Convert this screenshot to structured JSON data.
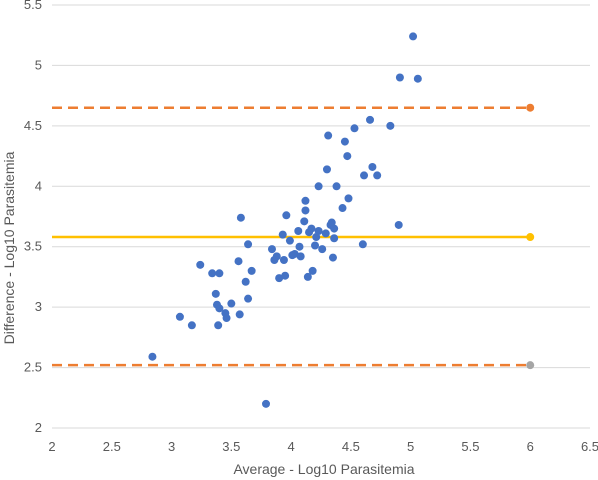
{
  "chart_data": {
    "type": "scatter",
    "title": "",
    "xlabel": "Average - Log10 Parasitemia",
    "ylabel": "Difference - Log10 Parasitemia",
    "xlim": [
      2,
      6.5
    ],
    "ylim": [
      2,
      5.5
    ],
    "x_ticks": [
      2,
      2.5,
      3,
      3.5,
      4,
      4.5,
      5,
      5.5,
      6,
      6.5
    ],
    "y_ticks": [
      2,
      2.5,
      3,
      3.5,
      4,
      4.5,
      5,
      5.5
    ],
    "grid": "horizontal",
    "legend": "none",
    "series": [
      {
        "color": "#4472C4",
        "points": [
          [
            2.84,
            2.59
          ],
          [
            3.07,
            2.92
          ],
          [
            3.17,
            2.85
          ],
          [
            3.24,
            3.35
          ],
          [
            3.34,
            3.28
          ],
          [
            3.37,
            3.11
          ],
          [
            3.38,
            3.02
          ],
          [
            3.39,
            2.85
          ],
          [
            3.4,
            3.28
          ],
          [
            3.4,
            2.99
          ],
          [
            3.45,
            2.95
          ],
          [
            3.46,
            2.91
          ],
          [
            3.5,
            3.03
          ],
          [
            3.56,
            3.38
          ],
          [
            3.57,
            2.94
          ],
          [
            3.58,
            3.74
          ],
          [
            3.62,
            3.21
          ],
          [
            3.64,
            3.52
          ],
          [
            3.64,
            3.07
          ],
          [
            3.67,
            3.3
          ],
          [
            3.79,
            2.2
          ],
          [
            3.84,
            3.48
          ],
          [
            3.86,
            3.39
          ],
          [
            3.88,
            3.42
          ],
          [
            3.9,
            3.24
          ],
          [
            3.93,
            3.6
          ],
          [
            3.94,
            3.39
          ],
          [
            3.95,
            3.26
          ],
          [
            3.96,
            3.76
          ],
          [
            3.99,
            3.55
          ],
          [
            4.01,
            3.43
          ],
          [
            4.03,
            3.44
          ],
          [
            4.06,
            3.63
          ],
          [
            4.07,
            3.5
          ],
          [
            4.08,
            3.42
          ],
          [
            4.11,
            3.71
          ],
          [
            4.12,
            3.8
          ],
          [
            4.12,
            3.88
          ],
          [
            4.14,
            3.25
          ],
          [
            4.15,
            3.62
          ],
          [
            4.17,
            3.65
          ],
          [
            4.18,
            3.3
          ],
          [
            4.2,
            3.51
          ],
          [
            4.21,
            3.58
          ],
          [
            4.23,
            4.0
          ],
          [
            4.23,
            3.63
          ],
          [
            4.26,
            3.48
          ],
          [
            4.29,
            3.61
          ],
          [
            4.3,
            4.14
          ],
          [
            4.31,
            4.42
          ],
          [
            4.33,
            3.68
          ],
          [
            4.34,
            3.7
          ],
          [
            4.35,
            3.41
          ],
          [
            4.36,
            3.57
          ],
          [
            4.36,
            3.65
          ],
          [
            4.38,
            4.0
          ],
          [
            4.43,
            3.82
          ],
          [
            4.45,
            4.37
          ],
          [
            4.47,
            4.25
          ],
          [
            4.48,
            3.9
          ],
          [
            4.53,
            4.48
          ],
          [
            4.6,
            3.52
          ],
          [
            4.61,
            4.09
          ],
          [
            4.66,
            4.55
          ],
          [
            4.68,
            4.16
          ],
          [
            4.72,
            4.09
          ],
          [
            4.83,
            4.5
          ],
          [
            4.9,
            3.68
          ],
          [
            4.91,
            4.9
          ],
          [
            5.02,
            5.24
          ],
          [
            5.06,
            4.89
          ]
        ]
      }
    ],
    "reference_lines": [
      {
        "y": 4.65,
        "color": "#ED7D31",
        "style": "dashed",
        "end_marker": "#ED7D31"
      },
      {
        "y": 3.58,
        "color": "#FFC000",
        "style": "solid",
        "end_marker": "#FFC000"
      },
      {
        "y": 2.52,
        "color": "#ED7D31",
        "style": "dashed",
        "end_marker": "#A5A5A5"
      }
    ],
    "reference_x_range": [
      2,
      6
    ],
    "grid_color": "#D9D9D9",
    "axis_text_color": "#595959"
  }
}
